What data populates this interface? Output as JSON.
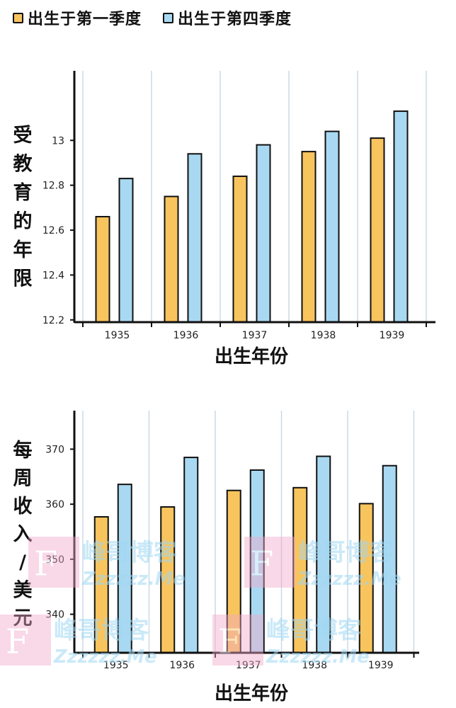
{
  "legend": {
    "items": [
      {
        "label": "出生于第一季度",
        "color": "#F8C45E"
      },
      {
        "label": "出生于第四季度",
        "color": "#A9D9F2"
      }
    ]
  },
  "chart_data": [
    {
      "type": "bar",
      "categories": [
        "1935",
        "1936",
        "1937",
        "1938",
        "1939"
      ],
      "series": [
        {
          "name": "出生于第一季度",
          "values": [
            12.66,
            12.75,
            12.84,
            12.95,
            13.01
          ]
        },
        {
          "name": "出生于第四季度",
          "values": [
            12.83,
            12.94,
            12.98,
            13.04,
            13.13
          ]
        }
      ],
      "yticks": [
        "12.2",
        "12.4",
        "12.6",
        "12.8",
        "13"
      ],
      "ylim": [
        12.19,
        13.31
      ],
      "ylabel": "受教育的年限",
      "xlabel": "出生年份",
      "grid": "vertical"
    },
    {
      "type": "bar",
      "categories": [
        "1935",
        "1936",
        "1937",
        "1938",
        "1939"
      ],
      "series": [
        {
          "name": "出生于第一季度",
          "values": [
            357.7,
            359.5,
            362.5,
            363.0,
            360.1
          ]
        },
        {
          "name": "出生于第四季度",
          "values": [
            363.6,
            368.5,
            366.2,
            368.7,
            367.0
          ]
        }
      ],
      "yticks": [
        "340",
        "350",
        "360",
        "370"
      ],
      "ylim": [
        333,
        377
      ],
      "ylabel": "每周收入/美元",
      "xlabel": "出生年份",
      "grid": "vertical"
    }
  ],
  "colors": {
    "q1": "#F8C45E",
    "q4": "#A9D9F2",
    "grid": "#C8D7E2",
    "axis": "#111111"
  },
  "watermark": {
    "text": "峰哥博客",
    "url": "Zzzzzz.Me",
    "logo": "F"
  }
}
